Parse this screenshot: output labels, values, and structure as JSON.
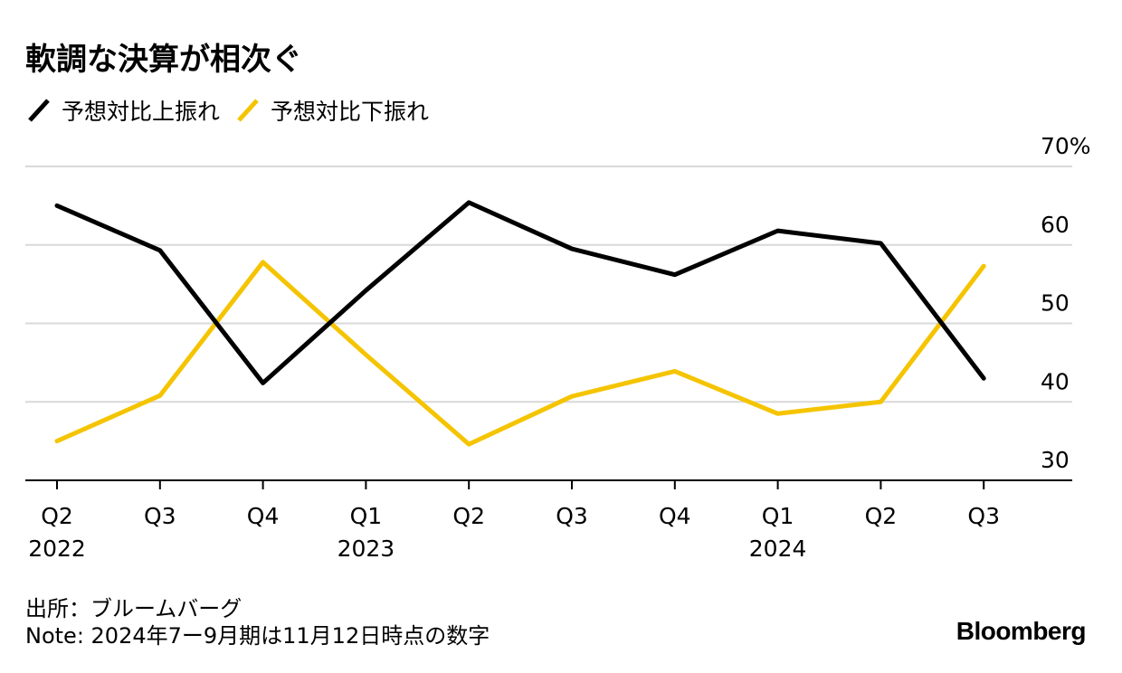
{
  "chart_data": {
    "type": "line",
    "title": "軟調な決算が相次ぐ",
    "categories": [
      "Q2",
      "Q3",
      "Q4",
      "Q1",
      "Q2",
      "Q3",
      "Q4",
      "Q1",
      "Q2",
      "Q3"
    ],
    "year_labels": [
      "2022",
      "",
      "",
      "2023",
      "",
      "",
      "",
      "2024",
      "",
      ""
    ],
    "series": [
      {
        "name": "予想対比上振れ",
        "color": "#000000",
        "values": [
          65,
          59.3,
          42.4,
          54.2,
          65.4,
          59.5,
          56.2,
          61.8,
          60.2,
          43
        ]
      },
      {
        "name": "予想対比下振れ",
        "color": "#F5C400",
        "values": [
          35,
          40.8,
          57.8,
          46,
          34.6,
          40.7,
          43.9,
          38.5,
          40,
          57.3
        ]
      }
    ],
    "yticks": [
      30,
      40,
      50,
      60,
      70
    ],
    "ytick_labels": [
      "30",
      "40",
      "50",
      "60",
      "70%"
    ],
    "ylim": [
      30,
      70
    ],
    "grid": true
  },
  "source": {
    "line1": "出所：ブルームバーグ",
    "line2": "Note: 2024年7ー9月期は11月12日時点の数字"
  },
  "brand": "Bloomberg"
}
